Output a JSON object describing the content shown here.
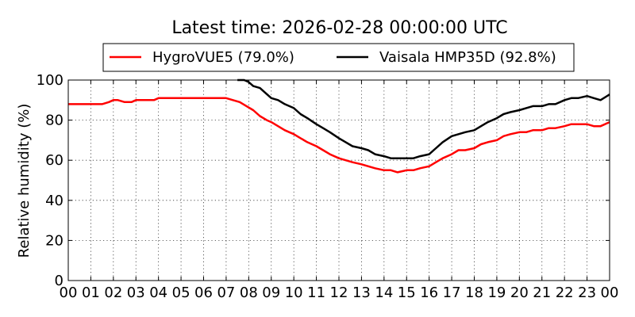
{
  "chart_data": {
    "type": "line",
    "title": "Latest time: 2026-02-28 00:00:00 UTC",
    "ylabel": "Relative humidity (%)",
    "xlabel": "",
    "ylim": [
      0,
      100
    ],
    "xlim": [
      0,
      24
    ],
    "xtick_labels": [
      "00",
      "01",
      "02",
      "03",
      "04",
      "05",
      "06",
      "07",
      "08",
      "09",
      "10",
      "11",
      "12",
      "13",
      "14",
      "15",
      "16",
      "17",
      "18",
      "19",
      "20",
      "21",
      "22",
      "23",
      "00"
    ],
    "ytick_labels": [
      "0",
      "20",
      "40",
      "60",
      "80",
      "100"
    ],
    "grid": true,
    "legend_placement": "top-center",
    "series": [
      {
        "name": "HygroVUE5 (79.0%)",
        "color": "#ff0000",
        "x": [
          0,
          0.5,
          1,
          1.5,
          1.8,
          2,
          2.2,
          2.5,
          2.8,
          3,
          3.5,
          3.8,
          4,
          4.5,
          4.8,
          5,
          5.5,
          6,
          6.5,
          7,
          7.3,
          7.6,
          7.9,
          8.2,
          8.5,
          8.8,
          9,
          9.3,
          9.6,
          10,
          10.3,
          10.6,
          11,
          11.3,
          11.6,
          12,
          12.3,
          12.6,
          13,
          13.3,
          13.6,
          14,
          14.3,
          14.6,
          15,
          15.3,
          15.6,
          16,
          16.3,
          16.6,
          17,
          17.3,
          17.6,
          18,
          18.3,
          18.6,
          19,
          19.3,
          19.6,
          20,
          20.3,
          20.6,
          21,
          21.3,
          21.6,
          22,
          22.3,
          22.6,
          23,
          23.3,
          23.6,
          24
        ],
        "values": [
          88,
          88,
          88,
          88,
          89,
          90,
          90,
          89,
          89,
          90,
          90,
          90,
          91,
          91,
          91,
          91,
          91,
          91,
          91,
          91,
          90,
          89,
          87,
          85,
          82,
          80,
          79,
          77,
          75,
          73,
          71,
          69,
          67,
          65,
          63,
          61,
          60,
          59,
          58,
          57,
          56,
          55,
          55,
          54,
          55,
          55,
          56,
          57,
          59,
          61,
          63,
          65,
          65,
          66,
          68,
          69,
          70,
          72,
          73,
          74,
          74,
          75,
          75,
          76,
          76,
          77,
          78,
          78,
          78,
          77,
          77,
          79
        ]
      },
      {
        "name": "Vaisala HMP35D (92.8%)",
        "color": "#000000",
        "x": [
          7.5,
          7.8,
          8,
          8.2,
          8.5,
          8.7,
          9,
          9.3,
          9.6,
          10,
          10.3,
          10.6,
          11,
          11.3,
          11.6,
          12,
          12.3,
          12.6,
          13,
          13.3,
          13.6,
          14,
          14.3,
          14.6,
          15,
          15.3,
          15.6,
          16,
          16.3,
          16.6,
          17,
          17.3,
          17.6,
          18,
          18.3,
          18.6,
          19,
          19.3,
          19.6,
          20,
          20.3,
          20.6,
          21,
          21.3,
          21.6,
          22,
          22.3,
          22.6,
          23,
          23.3,
          23.6,
          24
        ],
        "values": [
          100,
          100,
          99,
          97,
          96,
          94,
          91,
          90,
          88,
          86,
          83,
          81,
          78,
          76,
          74,
          71,
          69,
          67,
          66,
          65,
          63,
          62,
          61,
          61,
          61,
          61,
          62,
          63,
          66,
          69,
          72,
          73,
          74,
          75,
          77,
          79,
          81,
          83,
          84,
          85,
          86,
          87,
          87,
          88,
          88,
          90,
          91,
          91,
          92,
          91,
          90,
          92.8
        ]
      }
    ]
  }
}
